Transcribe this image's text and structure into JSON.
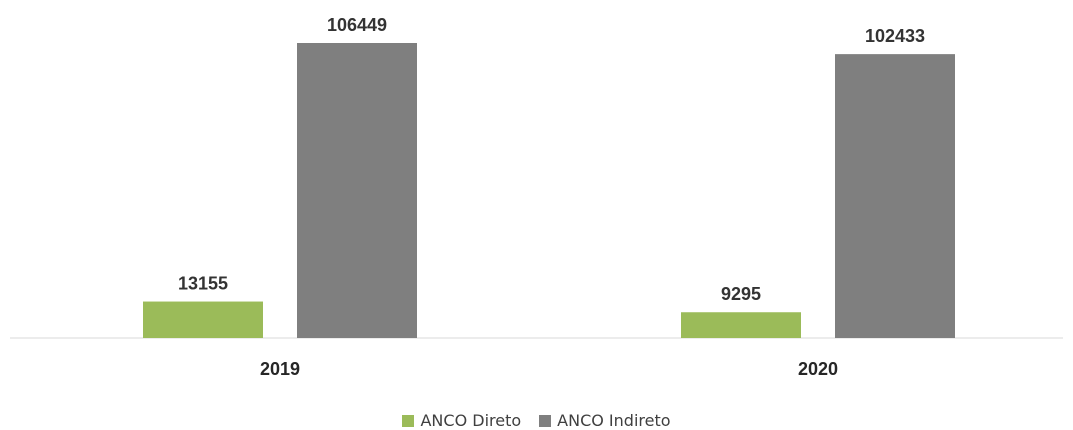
{
  "chart_data": {
    "type": "bar",
    "categories": [
      "2019",
      "2020"
    ],
    "series": [
      {
        "name": "ANCO Direto",
        "values": [
          13155,
          9295
        ],
        "color": "#9BBB59"
      },
      {
        "name": "ANCO Indireto",
        "values": [
          106449,
          102433
        ],
        "color": "#7F7F7F"
      }
    ],
    "value_labels": [
      [
        "13155",
        "9295"
      ],
      [
        "106449",
        "102433"
      ]
    ],
    "legend_position": "bottom",
    "grid": false,
    "ylim": [
      0,
      110000
    ]
  }
}
